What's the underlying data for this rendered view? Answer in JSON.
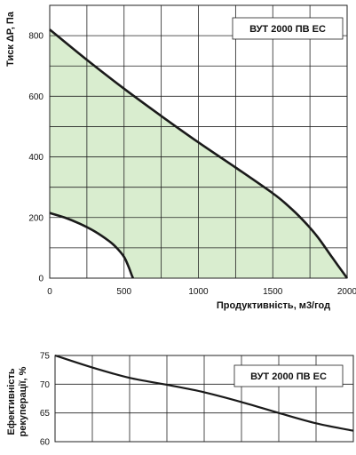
{
  "chart_data": [
    {
      "type": "line",
      "tag": "ВУТ 2000 ПВ ЕС",
      "ylabel": "Тиск ΔP, Па",
      "xlabel": "Продуктивність, м3/год",
      "xlim": [
        0,
        2000
      ],
      "ylim": [
        0,
        900
      ],
      "x_ticks": [
        0,
        500,
        1000,
        1500,
        2000
      ],
      "y_ticks": [
        0,
        200,
        400,
        600,
        800
      ],
      "x_grid": [
        0,
        250,
        500,
        750,
        1000,
        1250,
        1500,
        1750,
        2000
      ],
      "y_grid": [
        0,
        100,
        200,
        300,
        400,
        500,
        600,
        700,
        800,
        900
      ],
      "fill_color": "#d9edcf",
      "line_color": "#1a1a1a",
      "series": [
        {
          "role": "upper",
          "x": [
            0,
            250,
            500,
            750,
            1000,
            1250,
            1500,
            1600,
            1700,
            1800,
            1900,
            2000
          ],
          "y": [
            820,
            720,
            625,
            535,
            448,
            365,
            280,
            240,
            193,
            137,
            68,
            0
          ]
        },
        {
          "role": "lower",
          "x": [
            0,
            100,
            200,
            300,
            400,
            450,
            500,
            530,
            550,
            560
          ],
          "y": [
            215,
            200,
            180,
            155,
            122,
            100,
            70,
            38,
            12,
            0
          ]
        }
      ]
    },
    {
      "type": "line",
      "tag": "ВУТ 2000 ПВ ЕС",
      "ylabel": "Ефективність рекуперації, %",
      "ylabel_lines": [
        "Ефективність",
        "рекуперації, %"
      ],
      "xlim": [
        0,
        2000
      ],
      "ylim": [
        60,
        75
      ],
      "y_ticks": [
        60,
        65,
        70,
        75
      ],
      "x_grid": [
        0,
        250,
        500,
        750,
        1000,
        1250,
        1500,
        1750,
        2000
      ],
      "y_grid": [
        60,
        65,
        70,
        75
      ],
      "line_color": "#1a1a1a",
      "series": [
        {
          "x": [
            0,
            250,
            500,
            750,
            1000,
            1250,
            1500,
            1750,
            2000
          ],
          "y": [
            75,
            72.9,
            71.1,
            69.9,
            68.6,
            66.9,
            65.0,
            63.2,
            61.9
          ]
        }
      ]
    }
  ]
}
